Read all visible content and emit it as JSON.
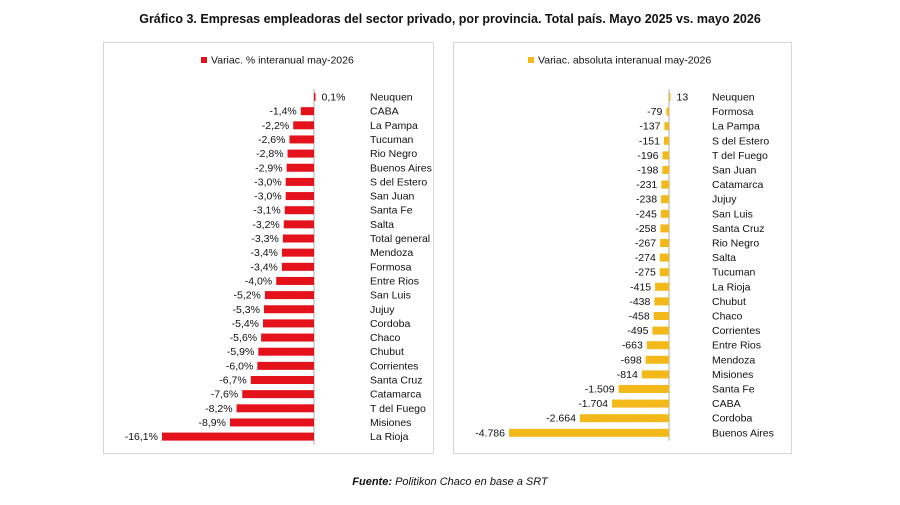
{
  "page_title": "Gráfico 3. Empresas empleadoras del sector privado, por provincia. Total país. Mayo 2025 vs. mayo 2026",
  "source": {
    "label": "Fuente:",
    "text": "Politikon Chaco en base a SRT"
  },
  "chart_data": [
    {
      "type": "bar",
      "orientation": "horizontal",
      "title": "",
      "legend": "Variac. % interanual may-2026",
      "legend_position": "top",
      "color": "#e3121b",
      "grid": false,
      "xlim": [
        -16.1,
        0.1
      ],
      "categories": [
        "Neuquen",
        "CABA",
        "La Pampa",
        "Tucuman",
        "Rio Negro",
        "Buenos Aires",
        "S del Estero",
        "San Juan",
        "Santa Fe",
        "Salta",
        "Total general",
        "Mendoza",
        "Formosa",
        "Entre Rios",
        "San Luis",
        "Jujuy",
        "Cordoba",
        "Chaco",
        "Chubut",
        "Corrientes",
        "Santa Cruz",
        "Catamarca",
        "T del Fuego",
        "Misiones",
        "La Rioja"
      ],
      "values": [
        0.1,
        -1.4,
        -2.2,
        -2.6,
        -2.8,
        -2.9,
        -3.0,
        -3.0,
        -3.1,
        -3.2,
        -3.3,
        -3.4,
        -3.4,
        -4.0,
        -5.2,
        -5.3,
        -5.4,
        -5.6,
        -5.9,
        -6.0,
        -6.7,
        -7.6,
        -8.2,
        -8.9,
        -16.1
      ],
      "labels": [
        "0,1%",
        "-1,4%",
        "-2,2%",
        "-2,6%",
        "-2,8%",
        "-2,9%",
        "-3,0%",
        "-3,0%",
        "-3,1%",
        "-3,2%",
        "-3,3%",
        "-3,4%",
        "-3,4%",
        "-4,0%",
        "-5,2%",
        "-5,3%",
        "-5,4%",
        "-5,6%",
        "-5,9%",
        "-6,0%",
        "-6,7%",
        "-7,6%",
        "-8,2%",
        "-8,9%",
        "-16,1%"
      ]
    },
    {
      "type": "bar",
      "orientation": "horizontal",
      "title": "",
      "legend": "Variac. absoluta interanual may-2026",
      "legend_position": "top",
      "color": "#f3b81a",
      "grid": false,
      "xlim": [
        -4786,
        13
      ],
      "categories": [
        "Neuquen",
        "Formosa",
        "La Pampa",
        "S del Estero",
        "T del Fuego",
        "San Juan",
        "Catamarca",
        "Jujuy",
        "San Luis",
        "Santa Cruz",
        "Rio Negro",
        "Salta",
        "Tucuman",
        "La Rioja",
        "Chubut",
        "Chaco",
        "Corrientes",
        "Entre Rios",
        "Mendoza",
        "Misiones",
        "Santa Fe",
        "CABA",
        "Cordoba",
        "Buenos Aires"
      ],
      "values": [
        13,
        -79,
        -137,
        -151,
        -196,
        -198,
        -231,
        -238,
        -245,
        -258,
        -267,
        -274,
        -275,
        -415,
        -438,
        -458,
        -495,
        -663,
        -698,
        -814,
        -1509,
        -1704,
        -2664,
        -4786
      ],
      "labels": [
        "13",
        "-79",
        "-137",
        "-151",
        "-196",
        "-198",
        "-231",
        "-238",
        "-245",
        "-258",
        "-267",
        "-274",
        "-275",
        "-415",
        "-438",
        "-458",
        "-495",
        "-663",
        "-698",
        "-814",
        "-1.509",
        "-1.704",
        "-2.664",
        "-4.786"
      ]
    }
  ]
}
